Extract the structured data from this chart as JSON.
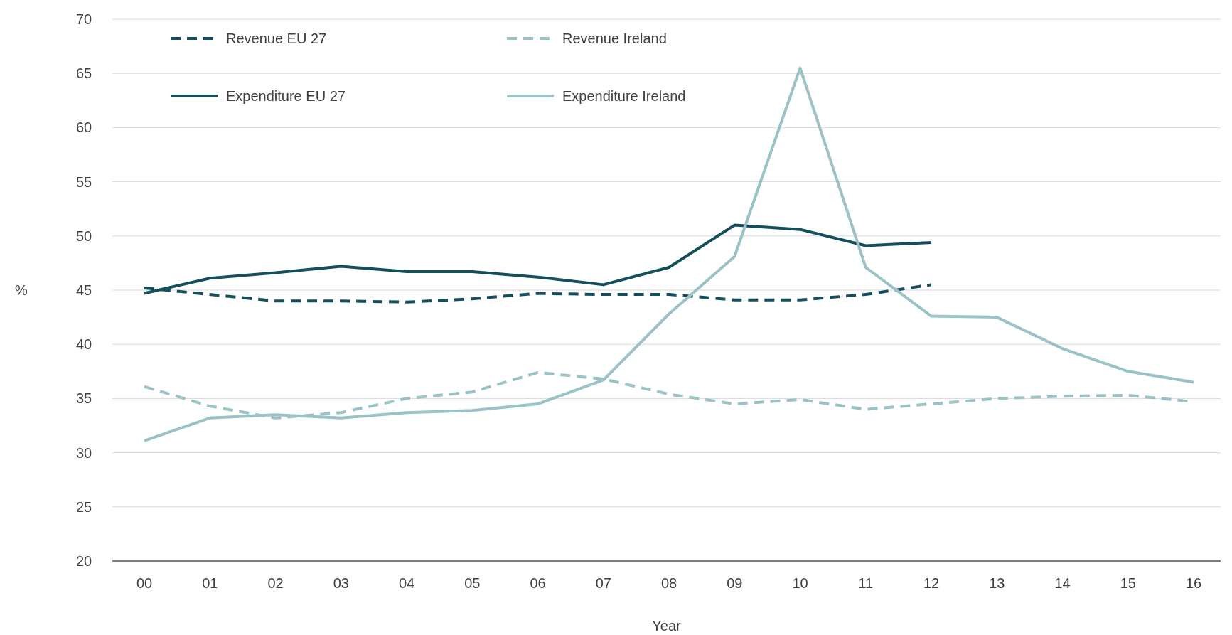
{
  "chart_data": {
    "type": "line",
    "xlabel": "Year",
    "ylabel": "%",
    "categories": [
      "00",
      "01",
      "02",
      "03",
      "04",
      "05",
      "06",
      "07",
      "08",
      "09",
      "10",
      "11",
      "12",
      "13",
      "14",
      "15",
      "16"
    ],
    "series": [
      {
        "name": "Revenue EU 27",
        "color": "#164f5c",
        "line_style": "dashed",
        "values": [
          45.2,
          44.6,
          44.0,
          44.0,
          43.9,
          44.2,
          44.7,
          44.6,
          44.6,
          44.1,
          44.1,
          44.6,
          45.5,
          null,
          null,
          null,
          null
        ]
      },
      {
        "name": "Revenue Ireland",
        "color": "#9bc3c7",
        "line_style": "dashed",
        "values": [
          36.1,
          34.3,
          33.2,
          33.7,
          35.0,
          35.6,
          37.4,
          36.8,
          35.4,
          34.5,
          34.9,
          34.0,
          34.5,
          35.0,
          35.2,
          35.3,
          34.7
        ]
      },
      {
        "name": "Expenditure EU 27",
        "color": "#164f5c",
        "line_style": "solid",
        "values": [
          44.7,
          46.1,
          46.6,
          47.2,
          46.7,
          46.7,
          46.2,
          45.5,
          47.1,
          51.0,
          50.6,
          49.1,
          49.4,
          null,
          null,
          null,
          null
        ]
      },
      {
        "name": "Expenditure Ireland",
        "color": "#9bc3c7",
        "line_style": "solid",
        "values": [
          31.1,
          33.2,
          33.5,
          33.2,
          33.7,
          33.9,
          34.5,
          36.7,
          42.8,
          48.1,
          65.5,
          47.1,
          42.6,
          42.5,
          39.6,
          37.5,
          36.5
        ]
      }
    ],
    "ylim": [
      20,
      70
    ],
    "yticks": [
      20,
      25,
      30,
      35,
      40,
      45,
      50,
      55,
      60,
      65,
      70
    ],
    "grid": "y",
    "legend": "top left",
    "marker": "none"
  }
}
